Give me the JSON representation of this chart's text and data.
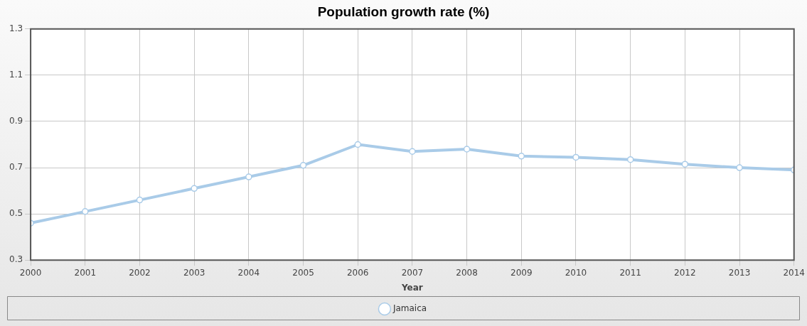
{
  "chart_data": {
    "type": "line",
    "title": "Population growth rate (%)",
    "xlabel": "Year",
    "x": [
      2000,
      2001,
      2002,
      2003,
      2004,
      2005,
      2006,
      2007,
      2008,
      2009,
      2010,
      2011,
      2012,
      2013,
      2014
    ],
    "series": [
      {
        "name": "Jamaica",
        "color": "#a9cbe8",
        "values": [
          0.46,
          0.51,
          0.56,
          0.61,
          0.66,
          0.71,
          0.8,
          0.77,
          0.78,
          0.75,
          0.745,
          0.735,
          0.715,
          0.7,
          0.69
        ]
      }
    ],
    "xlim": [
      2000,
      2014
    ],
    "xticks": [
      2000,
      2001,
      2002,
      2003,
      2004,
      2005,
      2006,
      2007,
      2008,
      2009,
      2010,
      2011,
      2012,
      2013,
      2014
    ],
    "ylim": [
      0.3,
      1.3
    ],
    "yticks": [
      0.3,
      0.5,
      0.7,
      0.9,
      1.1,
      1.3
    ],
    "grid": true,
    "legend": "bottom",
    "marker": "circle",
    "line_style": "solid"
  }
}
